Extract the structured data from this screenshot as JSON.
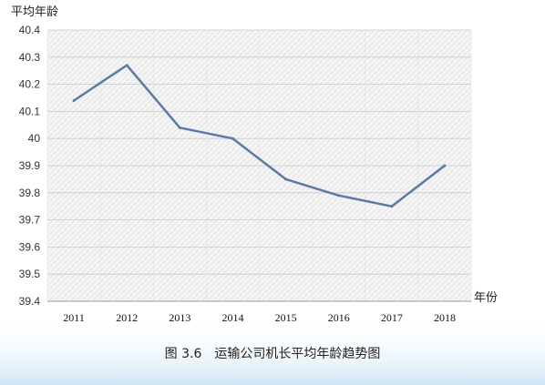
{
  "chart_data": {
    "type": "line",
    "ylabel": "平均年龄",
    "xlabel": "年份",
    "x": [
      "2011",
      "2012",
      "2013",
      "2014",
      "2015",
      "2016",
      "2017",
      "2018"
    ],
    "series": [
      {
        "values": [
          40.14,
          40.27,
          40.04,
          40.0,
          39.85,
          39.79,
          39.75,
          39.9
        ]
      }
    ],
    "yticks": [
      "39.4",
      "39.5",
      "39.6",
      "39.7",
      "39.8",
      "39.9",
      "40",
      "40.1",
      "40.2",
      "40.3",
      "40.4"
    ],
    "ylim": [
      39.4,
      40.4
    ],
    "grid": true,
    "caption": "图 3.6　运输公司机长平均年龄趋势图",
    "line_color": "#5b7ba6",
    "plot_background": "#f2f2f2",
    "bottom_wash_color": "#dceef8"
  }
}
